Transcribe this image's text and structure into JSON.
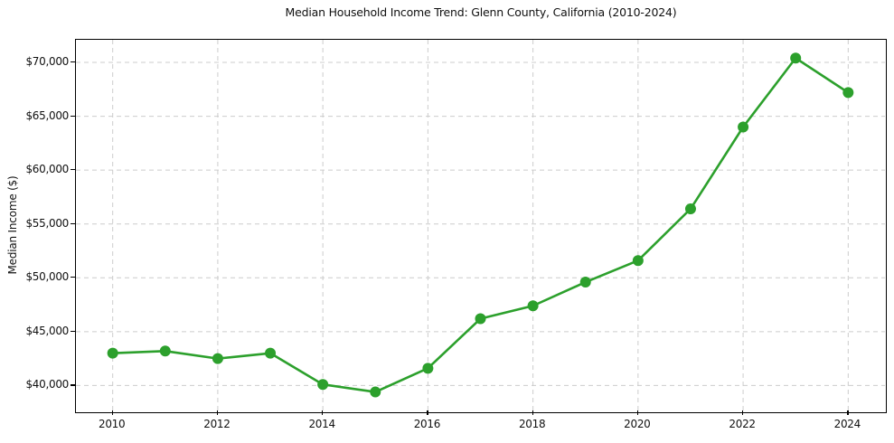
{
  "chart_data": {
    "type": "line",
    "title": "Median Household Income Trend: Glenn County, California (2010-2024)",
    "xlabel": "",
    "ylabel": "Median Income ($)",
    "x": [
      2010,
      2011,
      2012,
      2013,
      2014,
      2015,
      2016,
      2017,
      2018,
      2019,
      2020,
      2021,
      2022,
      2023,
      2024
    ],
    "series": [
      {
        "name": "Median Household Income",
        "color": "#2ca02c",
        "marker": "circle",
        "values": [
          43000,
          43200,
          42500,
          43000,
          40100,
          39400,
          41600,
          46200,
          47400,
          49600,
          51600,
          56400,
          64000,
          70400,
          67200
        ]
      }
    ],
    "xlim": [
      2009.3,
      2024.7
    ],
    "ylim": [
      37600,
      72100
    ],
    "x_ticks": [
      2010,
      2012,
      2014,
      2016,
      2018,
      2020,
      2022,
      2024
    ],
    "x_tick_labels": [
      "2010",
      "2012",
      "2014",
      "2016",
      "2018",
      "2020",
      "2022",
      "2024"
    ],
    "y_ticks": [
      40000,
      45000,
      50000,
      55000,
      60000,
      65000,
      70000
    ],
    "y_tick_labels": [
      "$40,000",
      "$45,000",
      "$50,000",
      "$55,000",
      "$60,000",
      "$65,000",
      "$70,000"
    ],
    "grid": true,
    "grid_line_style": "dashed",
    "legend_position": "none",
    "colors": {
      "line": "#2ca02c",
      "grid": "#cccccc",
      "spine": "#000000",
      "text": "#111111",
      "background": "#ffffff"
    }
  }
}
